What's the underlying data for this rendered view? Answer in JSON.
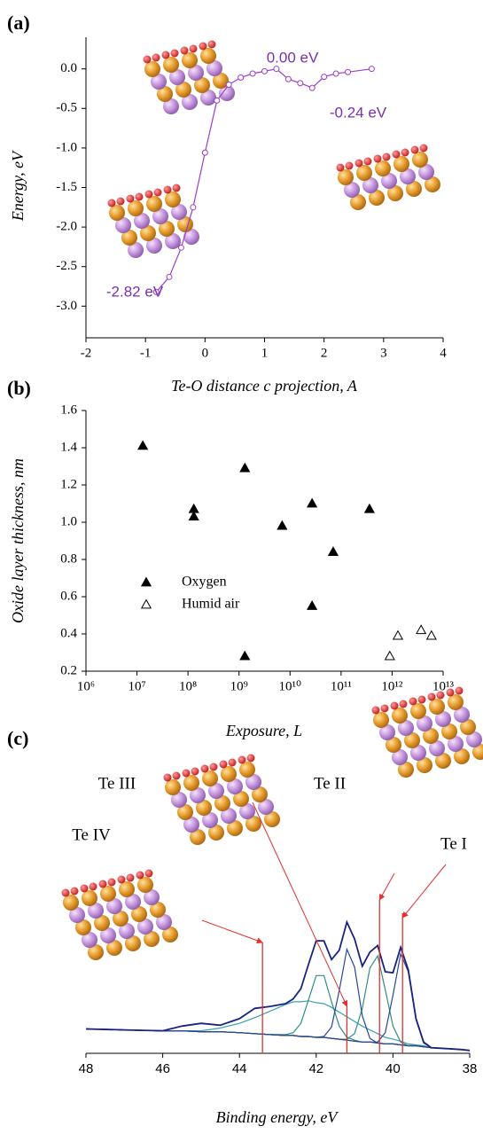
{
  "chart_data": [
    {
      "type": "line",
      "panel_label": "(a)",
      "xlabel": "Te-O distance c projection, A",
      "ylabel": "Energy, eV",
      "x": [
        -0.82,
        -0.6,
        -0.4,
        -0.2,
        0,
        0.2,
        0.4,
        0.6,
        0.8,
        1.0,
        1.2,
        1.4,
        1.6,
        1.8,
        2.0,
        2.2,
        2.4,
        2.8
      ],
      "series": [
        {
          "color": "#9b3fc9",
          "values": [
            -2.82,
            -2.63,
            -2.26,
            -1.75,
            -1.06,
            -0.4,
            -0.2,
            -0.11,
            -0.06,
            -0.03,
            0,
            -0.13,
            -0.18,
            -0.24,
            -0.1,
            -0.06,
            -0.04,
            0
          ]
        }
      ],
      "marker": "open-circle",
      "annotations": [
        "0.00 eV",
        "-0.24 eV",
        "-2.82 eV"
      ],
      "xlim": [
        -2,
        4
      ],
      "ylim": [
        -3.4,
        0.4
      ],
      "xticks": [
        -2,
        -1,
        0,
        1,
        2,
        3,
        4
      ],
      "yticks": [
        {
          "value": 0,
          "label": "0.0"
        },
        -0.5,
        {
          "value": -1,
          "label": "-1.0"
        },
        -1.5,
        {
          "value": -2,
          "label": "-2.0"
        },
        -2.5,
        {
          "value": -3,
          "label": "-3.0"
        }
      ]
    },
    {
      "type": "scatter",
      "panel_label": "(b)",
      "xlabel": "Exposure, L",
      "ylabel": "Oxide layer thickness, nm",
      "xscale": "log",
      "xlim": [
        1000000,
        10000000000000
      ],
      "ylim": [
        0.2,
        1.6
      ],
      "xticks": [
        {
          "value": 1000000,
          "label": "10⁶"
        },
        {
          "value": 10000000,
          "label": "10⁷"
        },
        {
          "value": 100000000,
          "label": "10⁸"
        },
        {
          "value": 1000000000,
          "label": "10⁹"
        },
        {
          "value": 10000000000,
          "label": "10¹⁰"
        },
        {
          "value": 100000000000,
          "label": "10¹¹"
        },
        {
          "value": 1000000000000,
          "label": "10¹²"
        },
        {
          "value": 10000000000000,
          "label": "10¹³"
        }
      ],
      "yticks": [
        0.2,
        0.4,
        0.6,
        0.8,
        {
          "value": 1,
          "label": "1.0"
        },
        1.2,
        1.4,
        1.6
      ],
      "legend": "left",
      "series": [
        {
          "name": "Oxygen",
          "marker": "filled-triangle",
          "color": "#000000",
          "x": [
            13000000,
            130000000,
            130000000,
            1300000000,
            1300000000,
            7000000000,
            27000000000,
            27000000000,
            70000000000,
            360000000000
          ],
          "values": [
            1.41,
            1.07,
            1.03,
            1.29,
            0.28,
            0.98,
            1.1,
            0.55,
            0.84,
            1.07
          ]
        },
        {
          "name": "Humid air",
          "marker": "open-triangle",
          "color": "#000000",
          "x": [
            900000000000,
            1300000000000,
            3700000000000,
            5900000000000
          ],
          "values": [
            0.28,
            0.39,
            0.42,
            0.39
          ]
        }
      ]
    },
    {
      "type": "line",
      "panel_label": "(c)",
      "xlabel": "Binding energy, eV",
      "xlim": [
        48,
        38
      ],
      "xticks": [
        48,
        46,
        44,
        42,
        40,
        38
      ],
      "x": [
        48,
        47,
        46,
        45.5,
        45,
        44.5,
        44,
        43.6,
        43.2,
        42.8,
        42.6,
        42.4,
        42.2,
        42,
        41.8,
        41.6,
        41.4,
        41.2,
        41,
        40.8,
        40.6,
        40.4,
        40.2,
        40,
        39.8,
        39.6,
        39.4,
        39.2,
        39,
        38.6,
        38.2,
        38
      ],
      "series": [
        {
          "color": "#3aa0b0",
          "values": [
            26,
            25,
            24,
            24,
            24,
            27,
            32,
            38,
            45,
            52,
            55,
            55,
            56,
            54,
            53,
            49,
            44,
            39,
            34,
            29,
            25,
            21,
            17,
            15,
            13,
            10,
            9,
            8,
            6,
            5,
            4,
            3
          ]
        },
        {
          "color": "#2f8f7f",
          "values": [
            26,
            25,
            24,
            24,
            23,
            23,
            22,
            21,
            20,
            20,
            22,
            32,
            57,
            83,
            83,
            55,
            29,
            17,
            14,
            12,
            12,
            11,
            10,
            10,
            9,
            8,
            8,
            7,
            6,
            5,
            4,
            3
          ]
        },
        {
          "color": "#2f8f7f",
          "values": [
            26,
            25,
            24,
            24,
            23,
            23,
            22,
            21,
            20,
            19,
            19,
            18,
            18,
            17,
            17,
            16,
            15,
            15,
            21,
            48,
            91,
            104,
            68,
            29,
            12,
            8,
            8,
            7,
            6,
            5,
            4,
            3
          ]
        },
        {
          "color": "#26479a",
          "values": [
            26,
            25,
            24,
            24,
            23,
            23,
            22,
            21,
            20,
            19,
            19,
            18,
            18,
            17,
            18,
            28,
            67,
            111,
            92,
            40,
            16,
            11,
            10,
            10,
            9,
            8,
            8,
            7,
            6,
            5,
            4,
            3
          ]
        },
        {
          "color": "#26479a",
          "values": [
            26,
            25,
            24,
            24,
            23,
            23,
            22,
            21,
            20,
            19,
            19,
            18,
            18,
            17,
            17,
            16,
            15,
            14,
            13,
            12,
            12,
            12,
            22,
            62,
            106,
            87,
            36,
            11,
            6,
            5,
            4,
            3
          ]
        },
        {
          "color": "#2b4a86",
          "values": [
            26,
            25,
            24,
            24,
            23,
            23,
            22,
            21,
            20,
            19,
            19,
            18,
            18,
            17,
            17,
            16,
            15,
            14,
            13,
            12,
            12,
            11,
            10,
            10,
            9,
            8,
            8,
            7,
            6,
            5,
            4,
            3
          ]
        },
        {
          "color": "#1a237e",
          "values": [
            26,
            25,
            24,
            29,
            32,
            30,
            37,
            48,
            50,
            53,
            58,
            69,
            95,
            120,
            120,
            100,
            110,
            140,
            122,
            93,
            108,
            115,
            87,
            86,
            113,
            89,
            37,
            12,
            6,
            5,
            4,
            3
          ]
        }
      ],
      "markers": [
        {
          "label": "Te IV",
          "x": 43.4
        },
        {
          "label": "Te III",
          "x": 41.2
        },
        {
          "label": "Te II",
          "x": 40.35
        },
        {
          "label": "Te I",
          "x": 39.75
        }
      ],
      "marker_color": "#e53030"
    }
  ]
}
